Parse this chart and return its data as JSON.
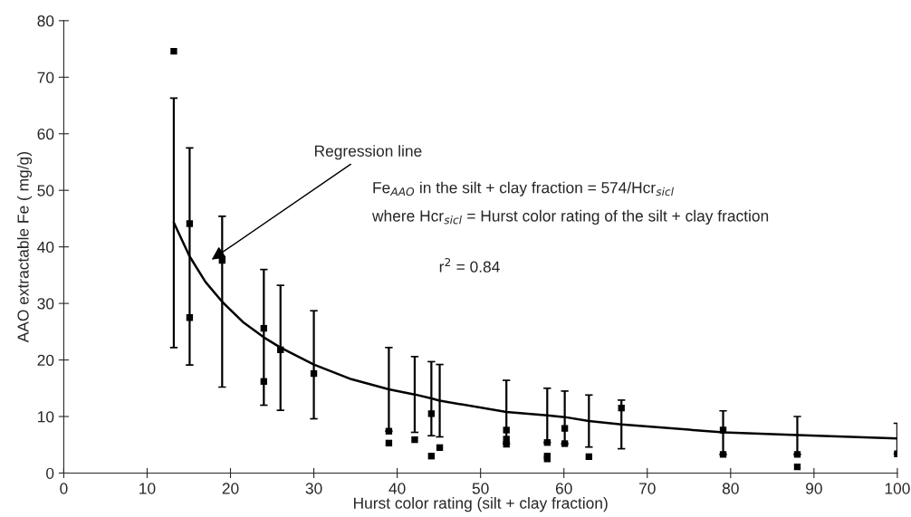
{
  "chart_data": {
    "type": "scatter",
    "xlabel": "Hurst color rating (silt + clay fraction)",
    "ylabel": "AAO extractable Fe ( mg/g)",
    "xlim": [
      0,
      100
    ],
    "xticks": [
      0,
      10,
      20,
      30,
      40,
      50,
      60,
      70,
      80,
      90,
      100
    ],
    "ylim": [
      0,
      80
    ],
    "yticks": [
      0,
      10,
      20,
      30,
      40,
      50,
      60,
      70,
      80
    ],
    "grid": false,
    "legend": false,
    "annotations": [
      "Regression line",
      "Fe$_{AAO}$ in the silt + clay fraction = 574/Hcr$_{sicl}$",
      "where Hcr$_{sicl}$ = Hurst color rating of the silt + clay fraction",
      "r$^{2}$ = 0.84"
    ],
    "series": [
      {
        "marker": "square",
        "color": "#000000",
        "x": [
          13.2,
          15.1,
          15.1,
          19,
          24,
          24,
          26,
          30,
          39,
          39,
          42.1,
          44.1,
          44.1,
          45.1,
          53.1,
          53.1,
          53.1,
          58,
          58,
          58,
          60.1,
          60.1,
          63,
          66.9,
          79.1,
          79.1,
          88,
          88,
          100
        ],
        "values": [
          74.6,
          44.1,
          27.5,
          37.6,
          25.6,
          16.2,
          21.8,
          17.6,
          7.4,
          5.3,
          5.9,
          10.5,
          3.0,
          4.5,
          7.6,
          6.0,
          5.1,
          5.4,
          3.0,
          2.5,
          7.9,
          5.2,
          2.9,
          11.5,
          7.6,
          3.3,
          3.3,
          1.1,
          3.4
        ]
      },
      {
        "type": "line",
        "marker": "none",
        "line_style": "solid",
        "color": "#000000",
        "x": [
          13.2,
          15.1,
          17,
          19,
          21.5,
          24,
          26,
          30,
          34.5,
          39,
          42.1,
          44.1,
          45.1,
          53.1,
          58,
          60.1,
          63,
          66.9,
          79.1,
          88,
          100
        ],
        "values": [
          44.3,
          38.3,
          33.8,
          30.3,
          26.7,
          24.0,
          22.2,
          19.2,
          16.6,
          14.8,
          13.9,
          13.2,
          12.8,
          10.8,
          10.2,
          9.9,
          9.2,
          8.6,
          7.2,
          6.7,
          6.1
        ],
        "errors": [
          [
            22.2,
            66.3
          ],
          [
            19.1,
            57.5
          ],
          null,
          [
            15.2,
            45.4
          ],
          null,
          [
            12.0,
            36.0
          ],
          [
            11.1,
            33.2
          ],
          [
            9.6,
            28.7
          ],
          null,
          [
            7.4,
            22.2
          ],
          [
            7.2,
            20.6
          ],
          [
            6.6,
            19.7
          ],
          [
            6.4,
            19.2
          ],
          [
            5.2,
            16.4
          ],
          [
            5.4,
            15.0
          ],
          [
            5.2,
            14.5
          ],
          [
            4.6,
            13.8
          ],
          [
            4.3,
            12.9
          ],
          [
            3.3,
            11.0
          ],
          [
            3.3,
            10.0
          ],
          [
            3.4,
            8.8
          ]
        ]
      }
    ]
  }
}
